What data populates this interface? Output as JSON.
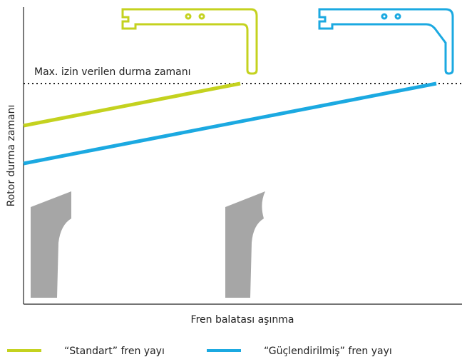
{
  "diagram": {
    "threshold_label": "Max. izin verilen durma zamanı",
    "y_axis_label": "Rotor durma zamanı",
    "x_axis_label": "Fren balatası aşınma",
    "legend": [
      {
        "label": "“Standart” fren yayı",
        "color": "#c4d21f"
      },
      {
        "label": "“Güçlendirilmiş” fren yayı",
        "color": "#1ba9e1"
      }
    ]
  }
}
